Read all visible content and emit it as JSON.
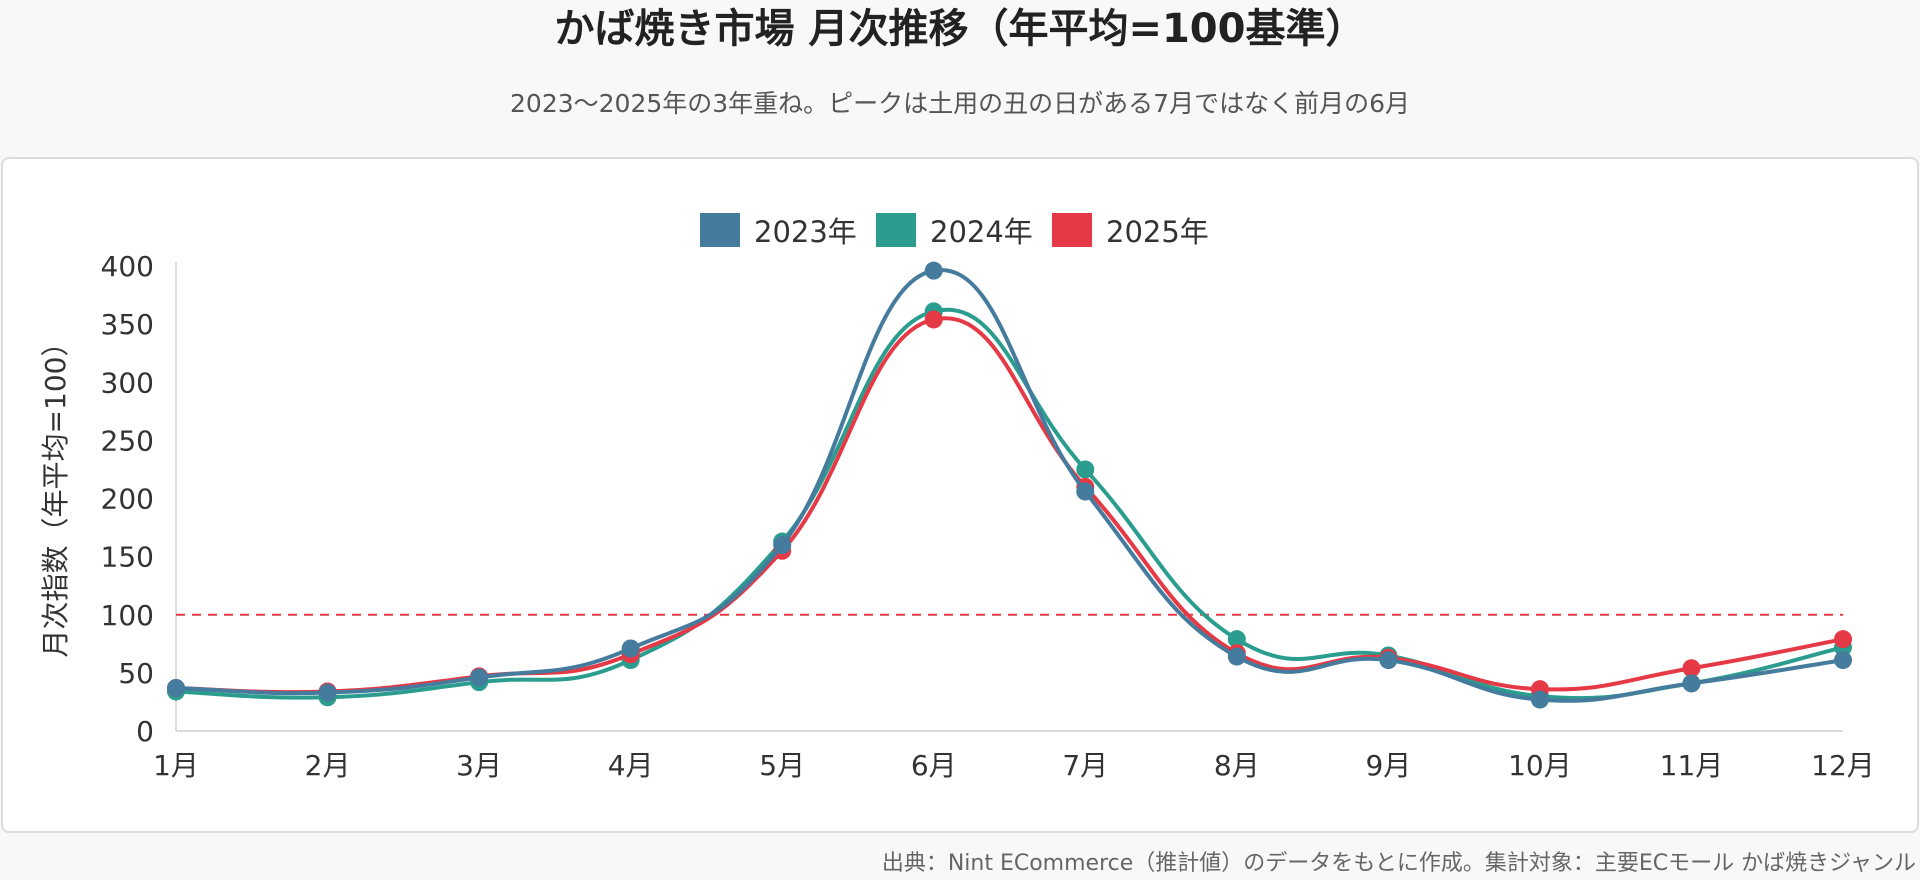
{
  "header": {
    "title": "かば焼き市場 月次推移（年平均=100基準）",
    "subtitle": "2023〜2025年の3年重ね。ピークは土用の丑の日がある7月ではなく前月の6月"
  },
  "footer": {
    "source": "出典：Nint ECommerce（推計値）のデータをもとに作成。集計対象：主要ECモール かば焼きジャンル"
  },
  "chart_data": {
    "type": "line",
    "title": "かば焼き市場 月次推移（年平均=100基準）",
    "xlabel": "",
    "ylabel": "月次指数（年平均=100）",
    "categories": [
      "1月",
      "2月",
      "3月",
      "4月",
      "5月",
      "6月",
      "7月",
      "8月",
      "9月",
      "10月",
      "11月",
      "12月"
    ],
    "ylim": [
      0,
      400
    ],
    "yticks": [
      0,
      50,
      100,
      150,
      200,
      250,
      300,
      350,
      400
    ],
    "reference_line": {
      "value": 100,
      "style": "dashed",
      "color": "#e63946"
    },
    "legend_position": "top-center",
    "grid": false,
    "series": [
      {
        "name": "2023年",
        "color": "#457b9d",
        "values": [
          37,
          33,
          46,
          71,
          160,
          396,
          206,
          64,
          61,
          27,
          41,
          61
        ]
      },
      {
        "name": "2024年",
        "color": "#2a9d8f",
        "values": [
          34,
          29,
          42,
          61,
          163,
          361,
          225,
          79,
          65,
          30,
          41,
          72
        ]
      },
      {
        "name": "2025年",
        "color": "#e63946",
        "values": [
          37,
          34,
          47,
          66,
          155,
          354,
          210,
          67,
          63,
          36,
          54,
          79
        ]
      }
    ]
  }
}
